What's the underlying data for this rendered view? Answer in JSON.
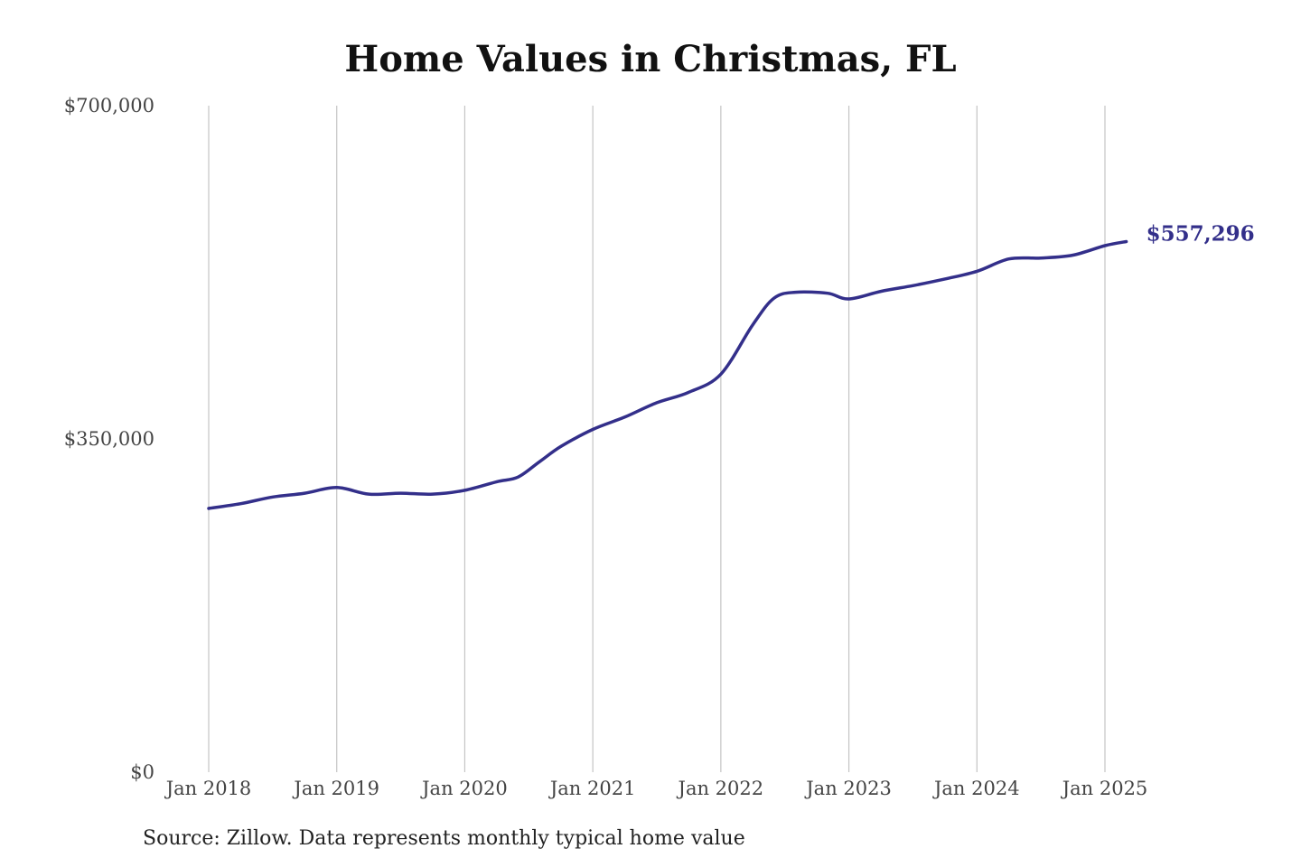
{
  "colors": {
    "line": "#332f8a",
    "grid": "#c4c4c4",
    "text": "#444444"
  },
  "source_note": "Source: Zillow. Data represents monthly typical home value",
  "chart_data": {
    "type": "line",
    "title": "Home Values in Christmas, FL",
    "xlabel": "",
    "ylabel": "",
    "ylim": [
      0,
      700000
    ],
    "xlim": [
      "2018-01",
      "2025-03"
    ],
    "grid": "vertical lines at x tick labels",
    "legend": "none",
    "y_ticks": [
      {
        "value": 0,
        "label": "$0"
      },
      {
        "value": 350000,
        "label": "$350,000"
      },
      {
        "value": 700000,
        "label": "$700,000"
      }
    ],
    "x_ticks": [
      {
        "value": "2018-01",
        "label": "Jan 2018"
      },
      {
        "value": "2019-01",
        "label": "Jan 2019"
      },
      {
        "value": "2020-01",
        "label": "Jan 2020"
      },
      {
        "value": "2021-01",
        "label": "Jan 2021"
      },
      {
        "value": "2022-01",
        "label": "Jan 2022"
      },
      {
        "value": "2023-01",
        "label": "Jan 2023"
      },
      {
        "value": "2024-01",
        "label": "Jan 2024"
      },
      {
        "value": "2025-01",
        "label": "Jan 2025"
      }
    ],
    "end_label": "$557,296",
    "series": [
      {
        "points": [
          [
            "2018-01",
            277000
          ],
          [
            "2018-04",
            282000
          ],
          [
            "2018-07",
            289000
          ],
          [
            "2018-10",
            293000
          ],
          [
            "2019-01",
            299000
          ],
          [
            "2019-04",
            292000
          ],
          [
            "2019-07",
            293000
          ],
          [
            "2019-10",
            292000
          ],
          [
            "2020-01",
            296000
          ],
          [
            "2020-04",
            305000
          ],
          [
            "2020-06",
            310000
          ],
          [
            "2020-08",
            326000
          ],
          [
            "2020-10",
            342000
          ],
          [
            "2021-01",
            360000
          ],
          [
            "2021-04",
            373000
          ],
          [
            "2021-07",
            388000
          ],
          [
            "2021-10",
            399000
          ],
          [
            "2022-01",
            418000
          ],
          [
            "2022-04",
            470000
          ],
          [
            "2022-06",
            498000
          ],
          [
            "2022-08",
            504000
          ],
          [
            "2022-11",
            503000
          ],
          [
            "2023-01",
            497000
          ],
          [
            "2023-04",
            505000
          ],
          [
            "2023-07",
            511000
          ],
          [
            "2023-10",
            518000
          ],
          [
            "2024-01",
            526000
          ],
          [
            "2024-04",
            539000
          ],
          [
            "2024-07",
            540000
          ],
          [
            "2024-10",
            543000
          ],
          [
            "2025-01",
            553000
          ],
          [
            "2025-03",
            557296
          ]
        ]
      }
    ]
  }
}
